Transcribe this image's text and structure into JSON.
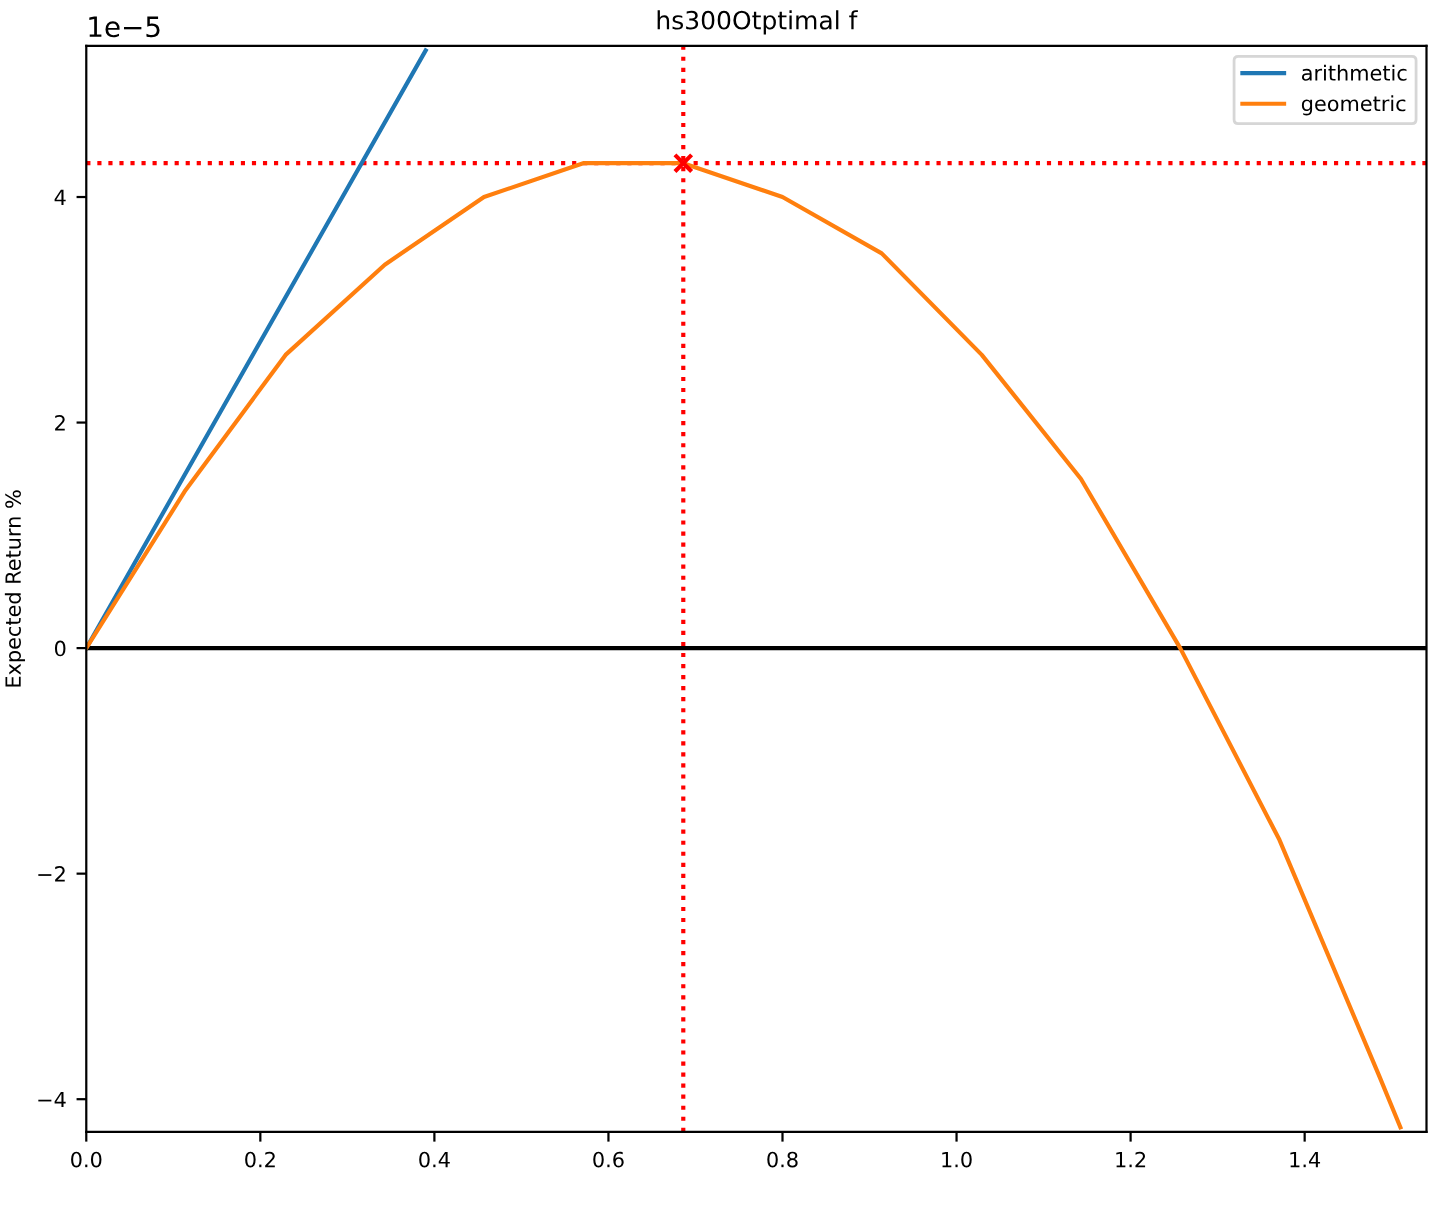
{
  "chart_data": {
    "type": "line",
    "title": "hs300Otptimal f",
    "ylabel": "Expected Return %",
    "annotations": [
      "1e−5"
    ],
    "series": [
      {
        "name": "arithmetic",
        "color": "#1f77b4",
        "x": [
          0,
          0.39
        ],
        "values": [
          0,
          5.3
        ]
      },
      {
        "name": "geometric",
        "color": "#ff7f0e",
        "x": [
          0,
          0.114,
          0.229,
          0.343,
          0.457,
          0.571,
          0.686,
          0.8,
          0.914,
          1.029,
          1.143,
          1.257,
          1.371,
          1.486,
          1.51
        ],
        "values": [
          0,
          1.4,
          2.6,
          3.4,
          4.0,
          4.3,
          4.3,
          4.0,
          3.5,
          2.6,
          1.5,
          0,
          -1.7,
          -3.8,
          -4.25
        ]
      },
      {
        "type": "scatter",
        "marker": "cross",
        "color": "#ff0000",
        "x": [
          0.686
        ],
        "values": [
          4.3
        ]
      }
    ],
    "ref_lines": [
      {
        "axis": "y",
        "value": 0,
        "color": "#000000",
        "line_style": "solid"
      },
      {
        "axis": "x",
        "value": 0.686,
        "color": "#ff0000",
        "line_style": "dotted"
      },
      {
        "axis": "y",
        "value": 4.3,
        "color": "#ff0000",
        "line_style": "dotted"
      }
    ],
    "xlim": [
      0,
      1.54
    ],
    "xticks": [
      {
        "value": 0,
        "label": "0.0"
      },
      0.2,
      0.4,
      0.6,
      0.8,
      {
        "value": 1,
        "label": "1.0"
      },
      1.2,
      1.4
    ],
    "ylim": [
      -4.29,
      5.34
    ],
    "yticks": [
      {
        "value": -4,
        "label": "−4"
      },
      {
        "value": -2,
        "label": "−2"
      },
      0,
      2,
      4
    ],
    "legend": "top right",
    "grid": false
  }
}
